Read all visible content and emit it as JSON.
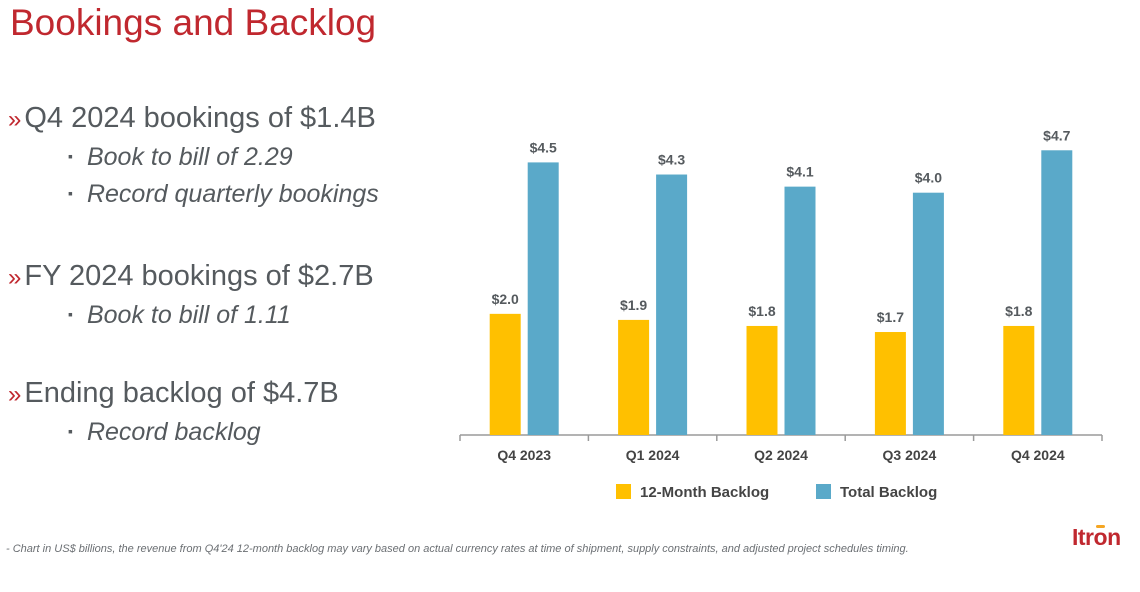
{
  "title": "Bookings and Backlog",
  "bullets": [
    {
      "text": "Q4 2024 bookings of $1.4B",
      "subs": [
        "Book to bill of 2.29",
        "Record quarterly bookings"
      ]
    },
    {
      "text": "FY 2024 bookings of $2.7B",
      "subs": [
        "Book to bill of 1.11"
      ]
    },
    {
      "text": "Ending backlog of $4.7B",
      "subs": [
        "Record backlog"
      ]
    }
  ],
  "footnote": "- Chart in US$ billions, the revenue from Q4'24 12-month backlog may vary based on actual currency rates at time of shipment, supply constraints, and adjusted project schedules timing.",
  "logo_text": "Itron",
  "colors": {
    "title": "#c0282f",
    "twelve_month": "#ffc000",
    "total": "#5aa9c9",
    "text": "#555a5e"
  },
  "chart_data": {
    "type": "bar",
    "categories": [
      "Q4 2023",
      "Q1 2024",
      "Q2 2024",
      "Q3 2024",
      "Q4 2024"
    ],
    "series": [
      {
        "name": "12-Month Backlog",
        "values": [
          2.0,
          1.9,
          1.8,
          1.7,
          1.8
        ],
        "labels": [
          "$2.0",
          "$1.9",
          "$1.8",
          "$1.7",
          "$1.8"
        ],
        "color": "#ffc000"
      },
      {
        "name": "Total Backlog",
        "values": [
          4.5,
          4.3,
          4.1,
          4.0,
          4.7
        ],
        "labels": [
          "$4.5",
          "$4.3",
          "$4.1",
          "$4.0",
          "$4.7"
        ],
        "color": "#5aa9c9"
      }
    ],
    "ylim": [
      0,
      5.2
    ],
    "legend": "bottom",
    "grid": false
  }
}
